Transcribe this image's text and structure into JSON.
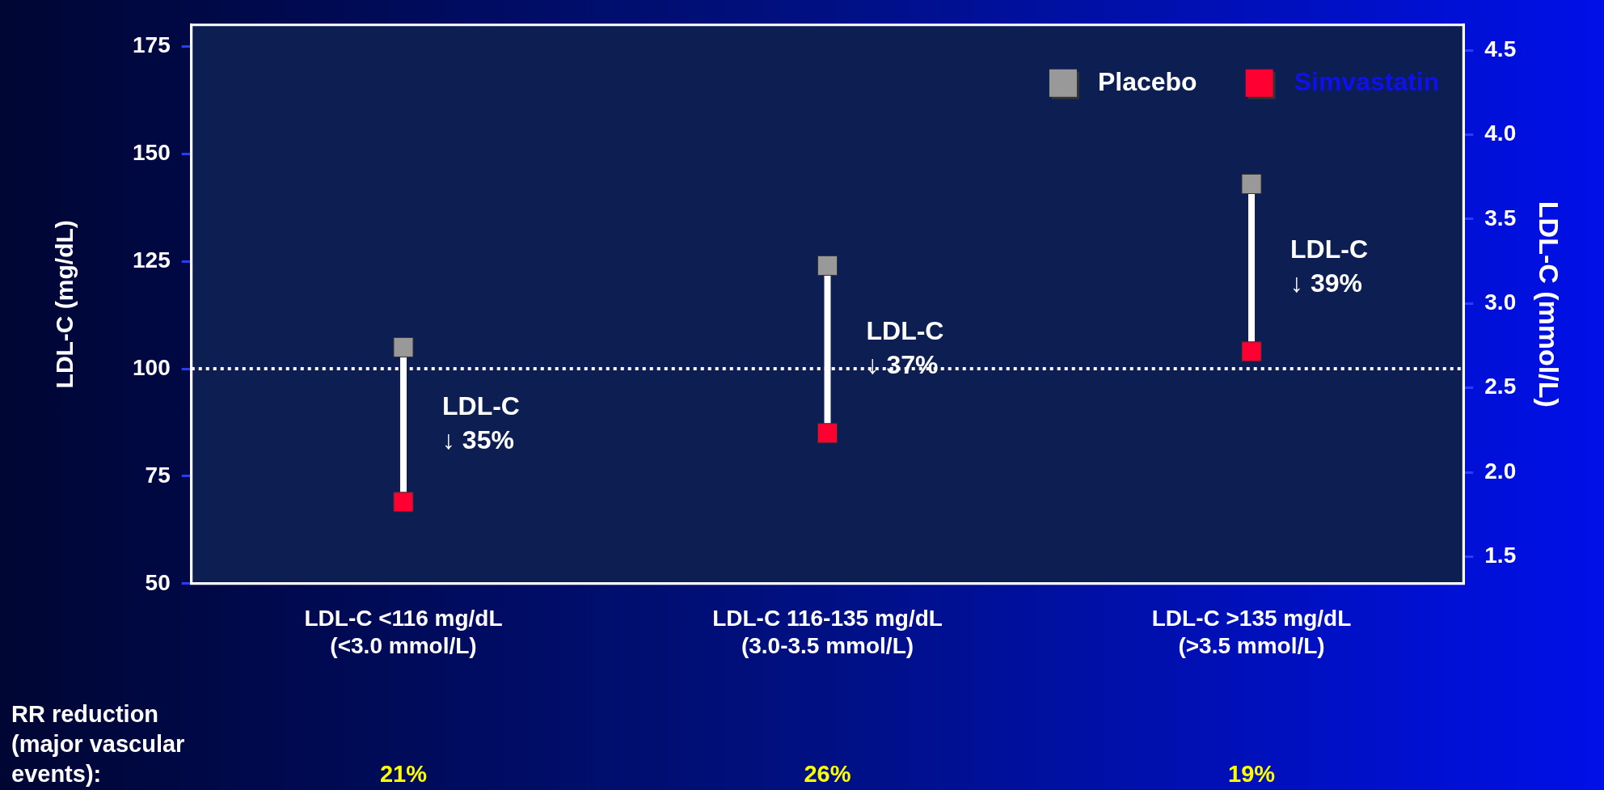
{
  "chart_data": {
    "type": "scatter",
    "categories": [
      "LDL-C <116 mg/dL\n(<3.0 mmol/L)",
      "LDL-C 116-135 mg/dL\n(3.0-3.5 mmol/L)",
      "LDL-C >135 mg/dL\n(>3.5 mmol/L)"
    ],
    "series": [
      {
        "name": "Placebo",
        "color": "#999999",
        "values": [
          105,
          124,
          143
        ]
      },
      {
        "name": "Simvastatin",
        "color": "#ff0033",
        "values": [
          69,
          85,
          104
        ]
      }
    ],
    "ylabel": "LDL-C (mg/dL)",
    "y2label": "LDL-C (mmol/L)",
    "ylim": [
      50,
      180
    ],
    "yticks": [
      50,
      75,
      100,
      125,
      150,
      175
    ],
    "y2lim": [
      1.34,
      4.65
    ],
    "y2ticks": [
      {
        "value": 1.5,
        "label": "1.5"
      },
      {
        "value": 2,
        "label": "2.0"
      },
      {
        "value": 2.5,
        "label": "2.5"
      },
      {
        "value": 3,
        "label": "3.0"
      },
      {
        "value": 3.5,
        "label": "3.5"
      },
      {
        "value": 4,
        "label": "4.0"
      },
      {
        "value": 4.5,
        "label": "4.5"
      }
    ],
    "ref_lines": [
      {
        "axis": "y",
        "value": 100,
        "color": "#ffffff",
        "line_style": "dotted"
      }
    ],
    "annotations": [
      "LDL-C\n↓ 35%",
      "LDL-C\n↓ 37%",
      "LDL-C\n↓ 39%",
      "RR reduction\n(major vascular\nevents):",
      "21%",
      "26%",
      "19%"
    ],
    "legend": "top right",
    "marker": "square",
    "grid": false
  }
}
